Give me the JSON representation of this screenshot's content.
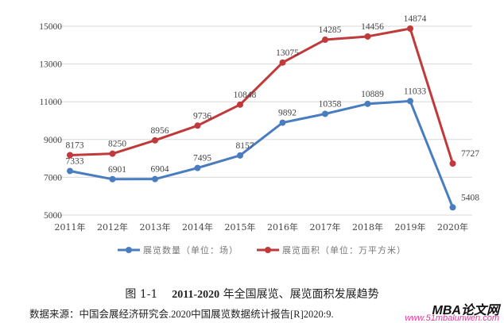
{
  "chart_data": {
    "type": "line",
    "categories": [
      "2011年",
      "2012年",
      "2013年",
      "2014年",
      "2015年",
      "2016年",
      "2017年",
      "2018年",
      "2019年",
      "2020年"
    ],
    "series": [
      {
        "name": "展览数量（单位：场）",
        "color": "#4a7dbf",
        "values": [
          7333,
          6901,
          6904,
          7495,
          8157,
          9892,
          10358,
          10889,
          11033,
          5408
        ]
      },
      {
        "name": "展览面积（单位：万平方米）",
        "color": "#c0393b",
        "values": [
          8173,
          8250,
          8956,
          9736,
          10848,
          13075,
          14285,
          14456,
          14874,
          7727
        ]
      }
    ],
    "yticks": [
      5000,
      7000,
      9000,
      11000,
      13000,
      15000
    ],
    "ylim": [
      5000,
      15000
    ],
    "grid": true,
    "legend": "bottom"
  },
  "caption": {
    "label": "图 1-1",
    "years": "2011-2020",
    "text": "年全国展览、展览面积发展趋势"
  },
  "source": "数据来源：中国会展经济研究会.2020中国展览数据统计报告[R]2020:9.",
  "watermark": {
    "title": "MBA论文网",
    "url": "www.51mbalunwen.com"
  }
}
